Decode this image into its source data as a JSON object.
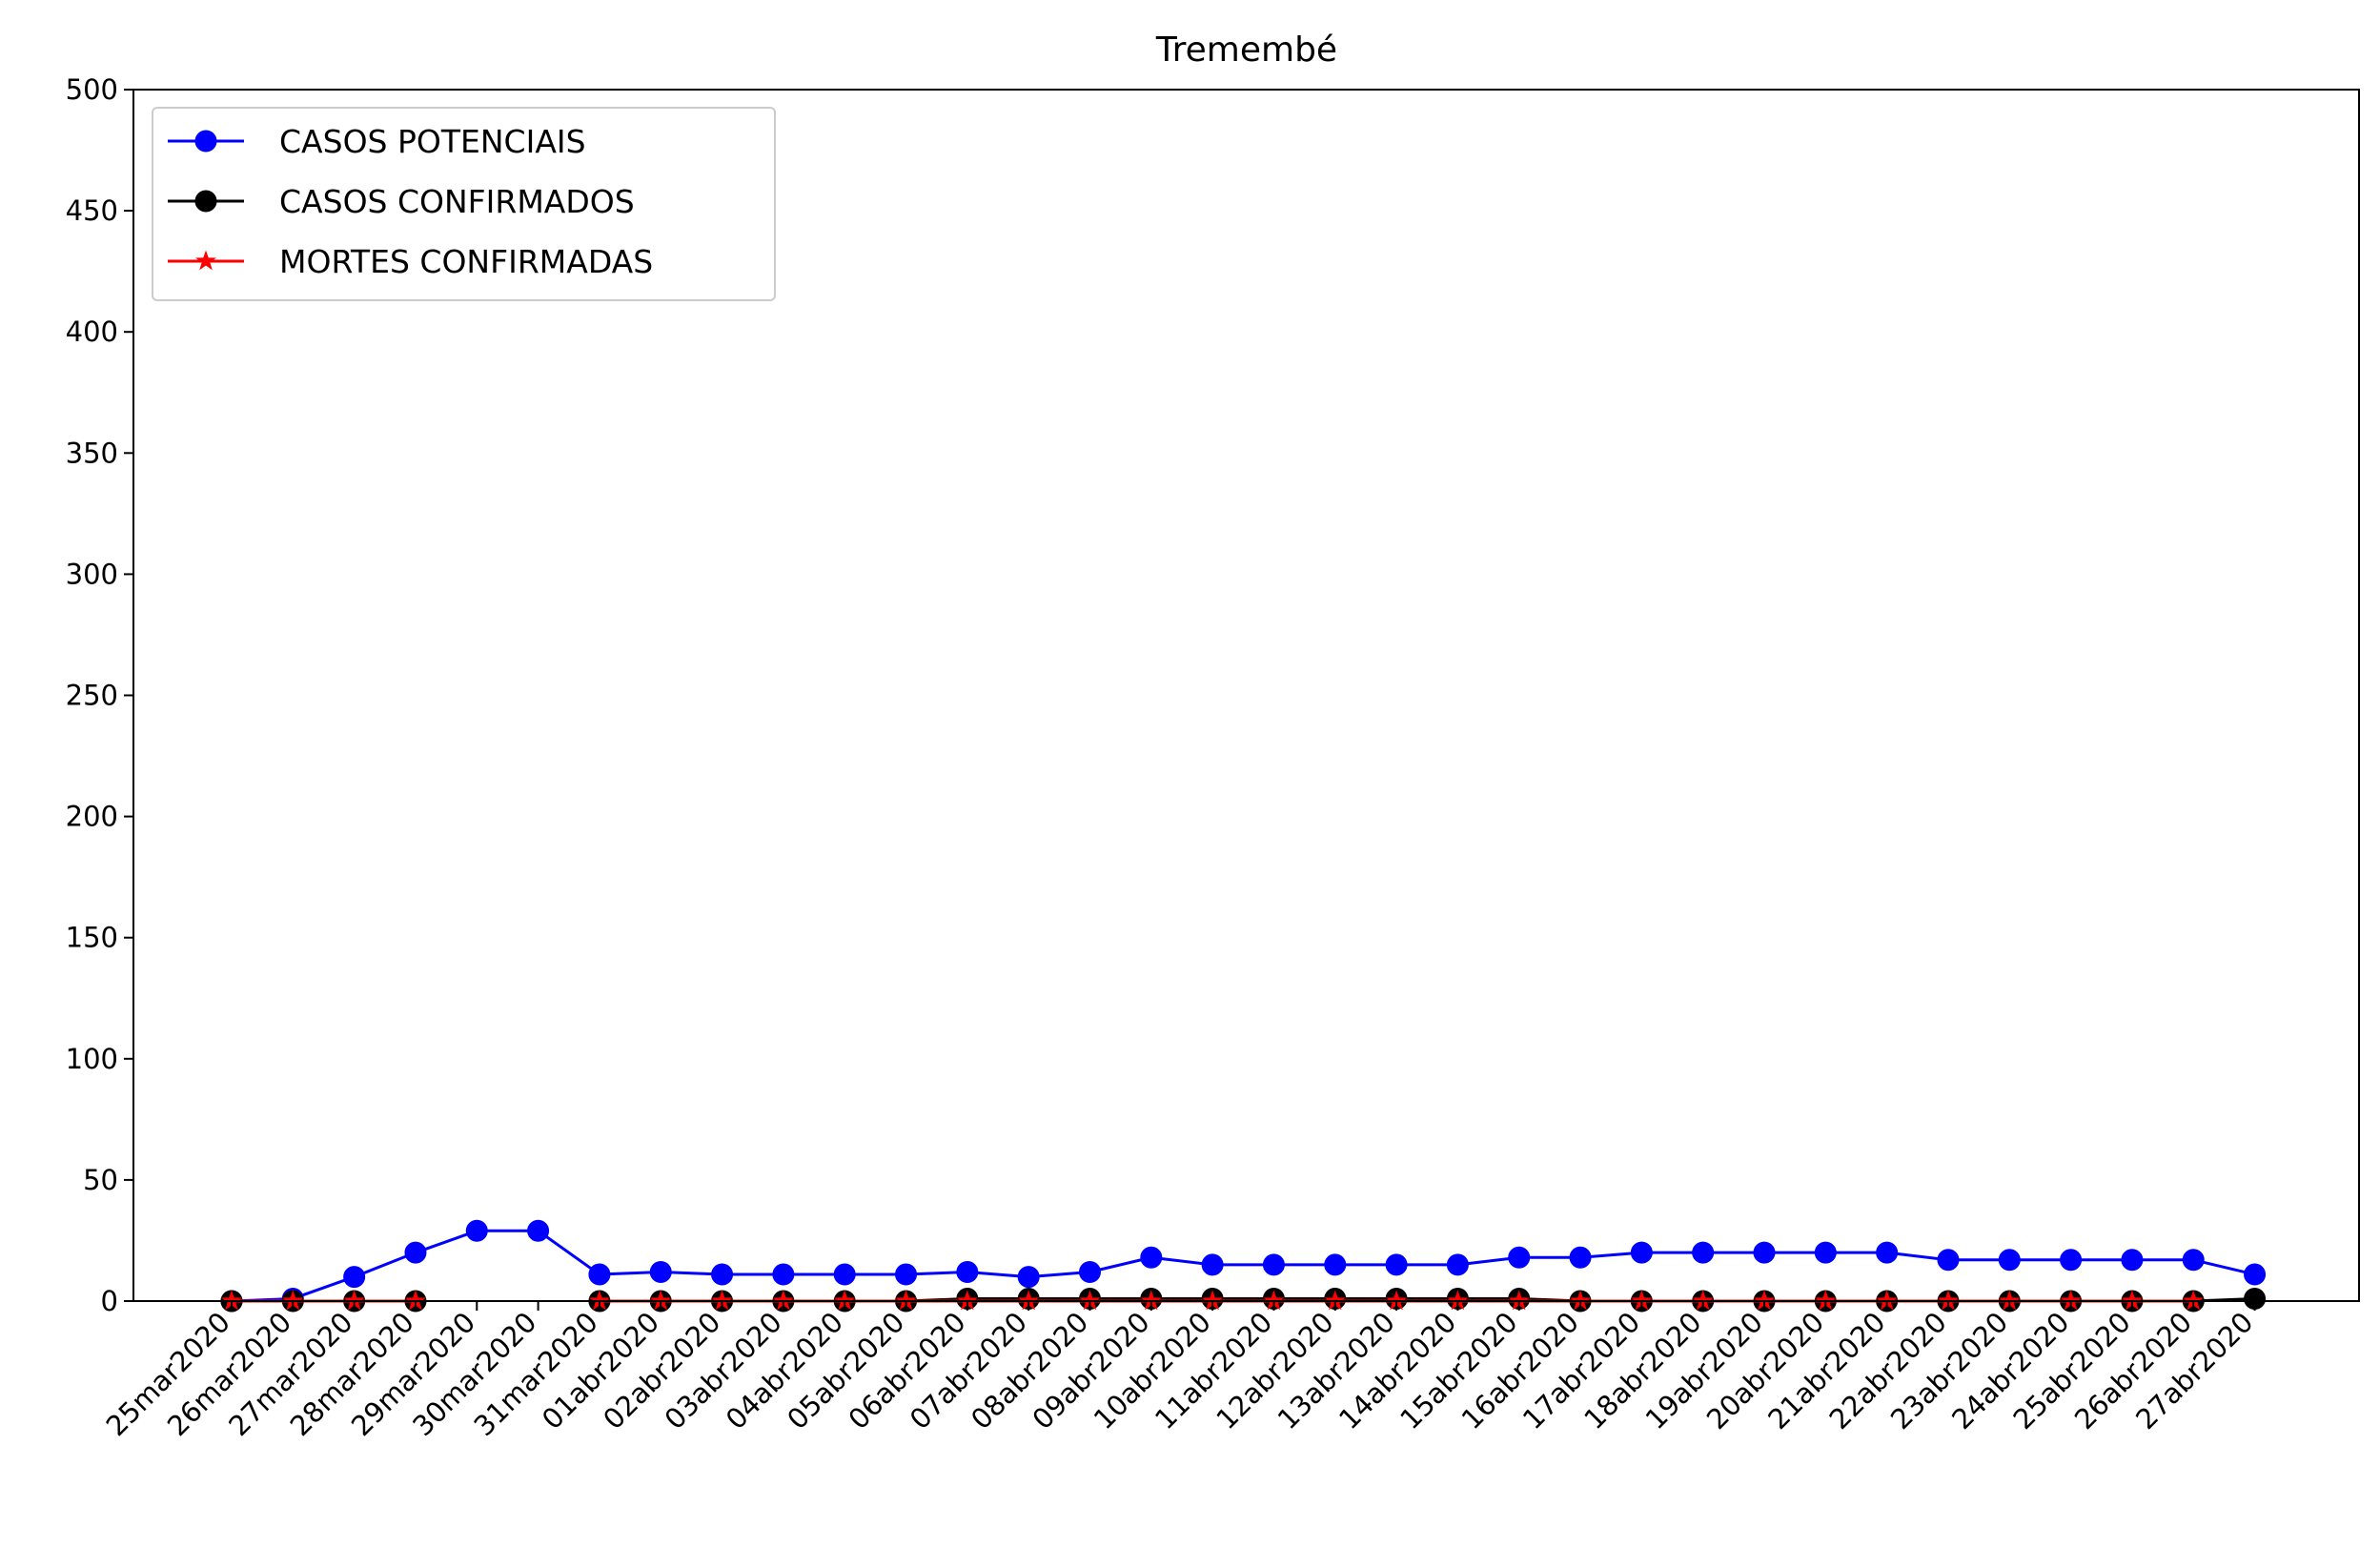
{
  "chart_data": {
    "type": "line",
    "title": "Tremembé",
    "xlabel": "",
    "ylabel": "",
    "ylim": [
      0,
      500
    ],
    "yticks": [
      0,
      50,
      100,
      150,
      200,
      250,
      300,
      350,
      400,
      450,
      500
    ],
    "grid": false,
    "legend_position": "top-left",
    "categories": [
      "25mar2020",
      "26mar2020",
      "27mar2020",
      "28mar2020",
      "29mar2020",
      "30mar2020",
      "31mar2020",
      "01abr2020",
      "02abr2020",
      "03abr2020",
      "04abr2020",
      "05abr2020",
      "06abr2020",
      "07abr2020",
      "08abr2020",
      "09abr2020",
      "10abr2020",
      "11abr2020",
      "12abr2020",
      "13abr2020",
      "14abr2020",
      "15abr2020",
      "16abr2020",
      "17abr2020",
      "18abr2020",
      "19abr2020",
      "20abr2020",
      "21abr2020",
      "22abr2020",
      "23abr2020",
      "24abr2020",
      "25abr2020",
      "26abr2020",
      "27abr2020"
    ],
    "series": [
      {
        "name": "CASOS POTENCIAIS",
        "color": "#0000ff",
        "marker": "circle",
        "values": [
          0,
          1,
          10,
          20,
          29,
          29,
          11,
          12,
          11,
          11,
          11,
          11,
          12,
          10,
          12,
          18,
          15,
          15,
          15,
          15,
          15,
          18,
          18,
          20,
          20,
          20,
          20,
          20,
          17,
          17,
          17,
          17,
          17,
          11
        ]
      },
      {
        "name": "CASOS CONFIRMADOS",
        "color": "#000000",
        "marker": "circle",
        "values": [
          0,
          0,
          0,
          0,
          null,
          null,
          0,
          0,
          0,
          0,
          0,
          0,
          1,
          1,
          1,
          1,
          1,
          1,
          1,
          1,
          1,
          1,
          0,
          0,
          0,
          0,
          0,
          0,
          0,
          0,
          0,
          0,
          0,
          1
        ]
      },
      {
        "name": "MORTES CONFIRMADAS",
        "color": "#ff0000",
        "marker": "star",
        "values": [
          0,
          0,
          0,
          0,
          null,
          null,
          0,
          0,
          0,
          0,
          0,
          0,
          0,
          0,
          0,
          0,
          0,
          0,
          0,
          0,
          0,
          0,
          0,
          0,
          0,
          0,
          0,
          0,
          0,
          0,
          0,
          0,
          0,
          null
        ]
      }
    ]
  }
}
